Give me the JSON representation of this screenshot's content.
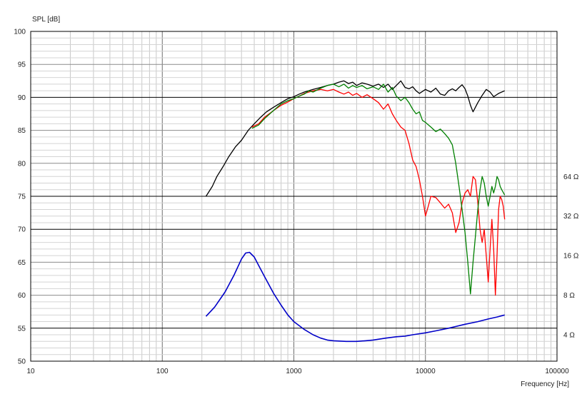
{
  "chart_data": {
    "type": "line",
    "ylabel": "SPL [dB]",
    "xlabel": "Frequency [Hz]",
    "x_scale": "log",
    "xlim": [
      10,
      100000
    ],
    "ylim": [
      50,
      100
    ],
    "x_ticks": [
      {
        "value": 10,
        "label": "10"
      },
      {
        "value": 100,
        "label": "100"
      },
      {
        "value": 1000,
        "label": "1000"
      },
      {
        "value": 10000,
        "label": "10000"
      },
      {
        "value": 100000,
        "label": "100000"
      }
    ],
    "y_ticks": [
      {
        "value": 100,
        "label": "100"
      },
      {
        "value": 95,
        "label": "95"
      },
      {
        "value": 90,
        "label": "90"
      },
      {
        "value": 85,
        "label": "85"
      },
      {
        "value": 80,
        "label": "80"
      },
      {
        "value": 75,
        "label": "75"
      },
      {
        "value": 70,
        "label": "70"
      },
      {
        "value": 65,
        "label": "65"
      },
      {
        "value": 60,
        "label": "60"
      },
      {
        "value": 55,
        "label": "55"
      },
      {
        "value": 50,
        "label": "50"
      }
    ],
    "y2_ticks": [
      {
        "value": 78,
        "label": "64 Ω"
      },
      {
        "value": 72,
        "label": "32 Ω"
      },
      {
        "value": 66,
        "label": "16 Ω"
      },
      {
        "value": 60,
        "label": "8 Ω"
      },
      {
        "value": 54,
        "label": "4 Ω"
      }
    ],
    "major_y_lines": [
      90,
      75,
      70,
      55
    ],
    "grid": true,
    "series": [
      {
        "color": "#000000",
        "points": [
          [
            215,
            75
          ],
          [
            240,
            76.5
          ],
          [
            260,
            78
          ],
          [
            290,
            79.5
          ],
          [
            320,
            81
          ],
          [
            360,
            82.5
          ],
          [
            400,
            83.5
          ],
          [
            450,
            85
          ],
          [
            500,
            86
          ],
          [
            560,
            87
          ],
          [
            620,
            87.8
          ],
          [
            700,
            88.5
          ],
          [
            800,
            89.2
          ],
          [
            900,
            89.8
          ],
          [
            1000,
            90.1
          ],
          [
            1100,
            90.5
          ],
          [
            1200,
            90.8
          ],
          [
            1400,
            91.2
          ],
          [
            1600,
            91.5
          ],
          [
            1800,
            91.8
          ],
          [
            2000,
            92
          ],
          [
            2200,
            92.3
          ],
          [
            2400,
            92.5
          ],
          [
            2600,
            92.1
          ],
          [
            2800,
            92.3
          ],
          [
            3000,
            91.8
          ],
          [
            3300,
            92.2
          ],
          [
            3600,
            92
          ],
          [
            4000,
            91.7
          ],
          [
            4400,
            92
          ],
          [
            4800,
            91.5
          ],
          [
            5200,
            92
          ],
          [
            5600,
            91.2
          ],
          [
            6000,
            91.8
          ],
          [
            6500,
            92.5
          ],
          [
            7000,
            91.5
          ],
          [
            7500,
            91.3
          ],
          [
            8000,
            91.6
          ],
          [
            8500,
            91
          ],
          [
            9000,
            90.6
          ],
          [
            10000,
            91.2
          ],
          [
            11000,
            90.8
          ],
          [
            12000,
            91.4
          ],
          [
            13000,
            90.5
          ],
          [
            14000,
            90.3
          ],
          [
            15000,
            91
          ],
          [
            16000,
            91.3
          ],
          [
            17000,
            91
          ],
          [
            18000,
            91.5
          ],
          [
            19000,
            91.9
          ],
          [
            20000,
            91.3
          ],
          [
            21000,
            90.2
          ],
          [
            22000,
            88.8
          ],
          [
            23000,
            87.8
          ],
          [
            25000,
            89.2
          ],
          [
            27000,
            90.3
          ],
          [
            29000,
            91.2
          ],
          [
            31000,
            90.8
          ],
          [
            33000,
            90.1
          ],
          [
            36000,
            90.6
          ],
          [
            40000,
            91
          ]
        ]
      },
      {
        "color": "#ff0000",
        "points": [
          [
            480,
            85.5
          ],
          [
            540,
            86
          ],
          [
            600,
            87
          ],
          [
            700,
            88
          ],
          [
            800,
            88.8
          ],
          [
            900,
            89.3
          ],
          [
            1000,
            89.8
          ],
          [
            1100,
            90.2
          ],
          [
            1200,
            90.6
          ],
          [
            1400,
            91
          ],
          [
            1600,
            91.2
          ],
          [
            1800,
            91
          ],
          [
            2000,
            91.2
          ],
          [
            2200,
            90.8
          ],
          [
            2400,
            90.5
          ],
          [
            2600,
            90.8
          ],
          [
            2800,
            90.3
          ],
          [
            3000,
            90.6
          ],
          [
            3300,
            90
          ],
          [
            3600,
            90.4
          ],
          [
            4000,
            89.8
          ],
          [
            4400,
            89.2
          ],
          [
            4800,
            88.2
          ],
          [
            5200,
            89
          ],
          [
            5600,
            87.5
          ],
          [
            6000,
            86.5
          ],
          [
            6500,
            85.5
          ],
          [
            7000,
            85
          ],
          [
            7500,
            83
          ],
          [
            8000,
            80.5
          ],
          [
            8500,
            79.5
          ],
          [
            9000,
            77.5
          ],
          [
            9500,
            75
          ],
          [
            10000,
            72
          ],
          [
            10500,
            73.5
          ],
          [
            11000,
            75
          ],
          [
            12000,
            74.8
          ],
          [
            13000,
            74
          ],
          [
            14000,
            73.2
          ],
          [
            15000,
            73.8
          ],
          [
            16000,
            72.5
          ],
          [
            17000,
            69.5
          ],
          [
            18000,
            71
          ],
          [
            19000,
            74
          ],
          [
            20000,
            75.5
          ],
          [
            21000,
            76
          ],
          [
            22000,
            75
          ],
          [
            23000,
            78
          ],
          [
            24000,
            77.5
          ],
          [
            25000,
            74
          ],
          [
            26000,
            70
          ],
          [
            27000,
            68
          ],
          [
            28000,
            70
          ],
          [
            29000,
            66
          ],
          [
            30000,
            62
          ],
          [
            31000,
            67
          ],
          [
            32000,
            71.5
          ],
          [
            33000,
            67
          ],
          [
            34000,
            60
          ],
          [
            35000,
            66
          ],
          [
            36000,
            73
          ],
          [
            37000,
            75
          ],
          [
            38000,
            74.5
          ],
          [
            39000,
            73.5
          ],
          [
            40000,
            71.5
          ]
        ]
      },
      {
        "color": "#008000",
        "points": [
          [
            480,
            85.3
          ],
          [
            540,
            85.8
          ],
          [
            600,
            86.8
          ],
          [
            700,
            88
          ],
          [
            800,
            89
          ],
          [
            900,
            89.5
          ],
          [
            1000,
            89.8
          ],
          [
            1100,
            90.2
          ],
          [
            1200,
            90.5
          ],
          [
            1300,
            91
          ],
          [
            1400,
            90.8
          ],
          [
            1600,
            91.4
          ],
          [
            1800,
            91.8
          ],
          [
            2000,
            92
          ],
          [
            2200,
            91.6
          ],
          [
            2400,
            92
          ],
          [
            2600,
            91.4
          ],
          [
            2800,
            91.8
          ],
          [
            3000,
            91.5
          ],
          [
            3300,
            91.8
          ],
          [
            3600,
            91.3
          ],
          [
            4000,
            91.6
          ],
          [
            4400,
            91.2
          ],
          [
            4800,
            92
          ],
          [
            5200,
            90.8
          ],
          [
            5600,
            91.5
          ],
          [
            6000,
            90.2
          ],
          [
            6500,
            89.5
          ],
          [
            7000,
            90
          ],
          [
            7500,
            89.2
          ],
          [
            8000,
            88.2
          ],
          [
            8500,
            87.5
          ],
          [
            9000,
            87.8
          ],
          [
            9500,
            86.5
          ],
          [
            10000,
            86.2
          ],
          [
            11000,
            85.5
          ],
          [
            12000,
            84.8
          ],
          [
            13000,
            85.2
          ],
          [
            14000,
            84.5
          ],
          [
            15000,
            83.8
          ],
          [
            16000,
            82.8
          ],
          [
            17000,
            80
          ],
          [
            18000,
            76.5
          ],
          [
            19000,
            73
          ],
          [
            20000,
            69.5
          ],
          [
            21000,
            65
          ],
          [
            22000,
            60.2
          ],
          [
            23000,
            65
          ],
          [
            24000,
            69
          ],
          [
            25000,
            73
          ],
          [
            26000,
            76
          ],
          [
            27000,
            78
          ],
          [
            28000,
            77
          ],
          [
            29000,
            75
          ],
          [
            30000,
            73.5
          ],
          [
            31000,
            75
          ],
          [
            32000,
            76.5
          ],
          [
            33000,
            75.5
          ],
          [
            34000,
            76.5
          ],
          [
            35000,
            78
          ],
          [
            36000,
            77.5
          ],
          [
            37000,
            76.5
          ],
          [
            38000,
            76
          ],
          [
            40000,
            75.2
          ]
        ]
      },
      {
        "color": "#0000c8",
        "points": [
          [
            215,
            56.8
          ],
          [
            250,
            58.2
          ],
          [
            300,
            60.5
          ],
          [
            350,
            63
          ],
          [
            400,
            65.5
          ],
          [
            430,
            66.4
          ],
          [
            460,
            66.5
          ],
          [
            500,
            65.8
          ],
          [
            550,
            64.2
          ],
          [
            600,
            62.8
          ],
          [
            700,
            60.3
          ],
          [
            800,
            58.5
          ],
          [
            900,
            57
          ],
          [
            1000,
            56
          ],
          [
            1200,
            54.8
          ],
          [
            1400,
            54
          ],
          [
            1600,
            53.5
          ],
          [
            1800,
            53.2
          ],
          [
            2000,
            53.1
          ],
          [
            2500,
            53
          ],
          [
            3000,
            53
          ],
          [
            3500,
            53.1
          ],
          [
            4000,
            53.2
          ],
          [
            5000,
            53.5
          ],
          [
            6000,
            53.7
          ],
          [
            7000,
            53.8
          ],
          [
            8000,
            54
          ],
          [
            10000,
            54.3
          ],
          [
            12000,
            54.6
          ],
          [
            15000,
            55
          ],
          [
            20000,
            55.6
          ],
          [
            25000,
            56
          ],
          [
            30000,
            56.4
          ],
          [
            35000,
            56.7
          ],
          [
            40000,
            57
          ]
        ]
      }
    ]
  }
}
